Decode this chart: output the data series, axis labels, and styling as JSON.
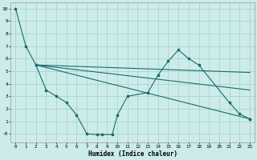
{
  "title": "",
  "xlabel": "Humidex (Indice chaleur)",
  "bg_color": "#ccecea",
  "grid_color": "#aad4d0",
  "line_color": "#1a6b6b",
  "xlim": [
    -0.5,
    23.5
  ],
  "ylim": [
    -0.7,
    10.5
  ],
  "xticks": [
    0,
    1,
    2,
    3,
    4,
    5,
    6,
    7,
    8,
    9,
    10,
    11,
    12,
    13,
    14,
    15,
    16,
    17,
    18,
    19,
    20,
    21,
    22,
    23
  ],
  "yticks": [
    0,
    1,
    2,
    3,
    4,
    5,
    6,
    7,
    8,
    9,
    10
  ],
  "ytick_labels": [
    "-0",
    "1",
    "2",
    "3",
    "4",
    "5",
    "6",
    "7",
    "8",
    "9",
    "10"
  ],
  "line1_x": [
    0,
    1,
    2,
    23
  ],
  "line1_y": [
    10,
    7,
    5.5,
    1.2
  ],
  "line2_x": [
    2,
    3,
    4,
    5,
    6,
    7,
    8,
    8.5,
    9.5,
    10,
    11,
    13,
    14,
    15,
    16,
    17,
    18,
    21,
    22,
    23
  ],
  "line2_y": [
    5.5,
    3.5,
    3.0,
    2.5,
    1.5,
    0.0,
    -0.05,
    -0.05,
    -0.05,
    1.5,
    3.0,
    3.3,
    4.7,
    5.8,
    6.7,
    6.0,
    5.5,
    2.5,
    1.6,
    1.2
  ],
  "line3_x": [
    2,
    23
  ],
  "line3_y": [
    5.5,
    4.9
  ],
  "line4_x": [
    2,
    23
  ],
  "line4_y": [
    5.5,
    3.5
  ]
}
